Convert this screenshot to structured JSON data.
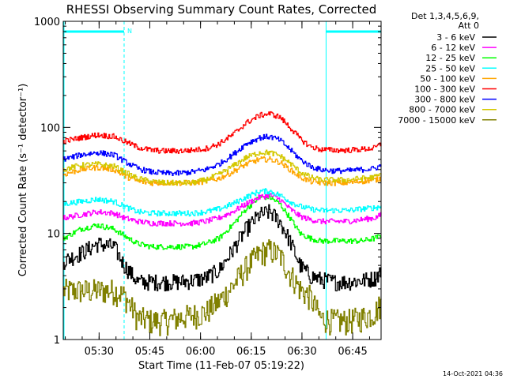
{
  "chart_data": {
    "type": "line",
    "title": "RHESSI Observing Summary Count Rates, Corrected",
    "xlabel": "Start Time (11-Feb-07 05:19:22)",
    "ylabel": "Corrected Count Rate (s⁻¹ detector⁻¹)",
    "yscale": "log",
    "ylim": [
      1,
      1000
    ],
    "xlim_minutes": [
      0,
      94
    ],
    "x_ticks": [
      {
        "m": 10.6,
        "label": "05:30"
      },
      {
        "m": 25.6,
        "label": "05:45"
      },
      {
        "m": 40.6,
        "label": "06:00"
      },
      {
        "m": 55.6,
        "label": "06:15"
      },
      {
        "m": 70.6,
        "label": "06:30"
      },
      {
        "m": 85.6,
        "label": "06:45"
      }
    ],
    "y_ticks": [
      {
        "v": 1,
        "label": "1"
      },
      {
        "v": 10,
        "label": "10"
      },
      {
        "v": 100,
        "label": "100"
      },
      {
        "v": 1000,
        "label": "1000"
      }
    ],
    "legend_header": [
      "Det 1,3,4,5,6,9,",
      "Att 0"
    ],
    "legend_position": "right",
    "night_periods": [
      {
        "start": 0,
        "end": 18
      },
      {
        "start": 77.5,
        "end": 94
      }
    ],
    "saa_marker": "N",
    "series": [
      {
        "name": "3 - 6 keV",
        "color": "#000000",
        "x": [
          0,
          5,
          10,
          15,
          18,
          22,
          26,
          30,
          34,
          38,
          42,
          46,
          50,
          54,
          58,
          61,
          64,
          67,
          70,
          73,
          76,
          80,
          84,
          88,
          92,
          94
        ],
        "values": [
          5.5,
          6.5,
          8,
          7.5,
          5,
          3.5,
          3.5,
          3.5,
          3.5,
          3.6,
          3.8,
          4.5,
          7,
          11,
          15,
          16,
          13,
          8.5,
          5,
          4,
          3.7,
          3.5,
          3.5,
          3.6,
          3.8,
          4.5
        ]
      },
      {
        "name": "6 - 12 keV",
        "color": "#ff00ff",
        "x": [
          0,
          5,
          10,
          15,
          18,
          22,
          26,
          30,
          34,
          38,
          42,
          46,
          50,
          54,
          58,
          61,
          64,
          67,
          70,
          73,
          76,
          80,
          84,
          88,
          92,
          94
        ],
        "values": [
          14,
          15,
          16,
          15.5,
          14,
          13,
          12.5,
          12.5,
          12.5,
          12.5,
          13,
          14,
          16,
          19,
          22,
          23,
          21,
          17,
          14.5,
          13.5,
          13,
          13,
          13,
          13.5,
          14,
          15
        ]
      },
      {
        "name": "12 - 25 keV",
        "color": "#00ff00",
        "x": [
          0,
          5,
          10,
          15,
          18,
          22,
          26,
          30,
          34,
          38,
          42,
          46,
          50,
          54,
          58,
          61,
          64,
          67,
          70,
          73,
          76,
          80,
          84,
          88,
          92,
          94
        ],
        "values": [
          9,
          11,
          12,
          11,
          9.5,
          8,
          7.5,
          7.5,
          7.5,
          7.5,
          8,
          9,
          12,
          17,
          22,
          22,
          19,
          14,
          10,
          9,
          8.5,
          8.5,
          8.5,
          8.5,
          9,
          9.5
        ]
      },
      {
        "name": "25 - 50 keV",
        "color": "#00ffff",
        "x": [
          0,
          5,
          10,
          15,
          18,
          22,
          26,
          30,
          34,
          38,
          42,
          46,
          50,
          54,
          58,
          61,
          64,
          67,
          70,
          73,
          76,
          80,
          84,
          88,
          92,
          94
        ],
        "values": [
          19,
          20,
          21,
          20,
          18,
          16,
          15.5,
          15.5,
          15.5,
          15.5,
          16,
          17,
          19,
          22,
          25,
          25,
          23,
          20,
          18,
          17,
          16.5,
          16.5,
          16.5,
          17,
          17.5,
          18
        ]
      },
      {
        "name": "50 - 100 keV",
        "color": "#ffa500",
        "x": [
          0,
          5,
          10,
          15,
          18,
          22,
          26,
          30,
          34,
          38,
          42,
          46,
          50,
          54,
          58,
          61,
          64,
          67,
          70,
          73,
          76,
          80,
          84,
          88,
          92,
          94
        ],
        "values": [
          36,
          40,
          42,
          40,
          35,
          31,
          30,
          30,
          30,
          30,
          31,
          33,
          38,
          45,
          50,
          50,
          47,
          40,
          34,
          31,
          30,
          30,
          30,
          31,
          32,
          33
        ]
      },
      {
        "name": "100 - 300 keV",
        "color": "#ff0000",
        "x": [
          0,
          5,
          10,
          15,
          18,
          22,
          26,
          30,
          34,
          38,
          42,
          46,
          50,
          54,
          58,
          61,
          64,
          67,
          70,
          73,
          76,
          80,
          84,
          88,
          92,
          94
        ],
        "values": [
          74,
          80,
          85,
          82,
          74,
          65,
          61,
          60,
          60,
          61,
          63,
          70,
          85,
          110,
          130,
          135,
          125,
          100,
          78,
          66,
          62,
          61,
          61,
          62,
          64,
          70
        ]
      },
      {
        "name": "300 - 800 keV",
        "color": "#0000ff",
        "x": [
          0,
          5,
          10,
          15,
          18,
          22,
          26,
          30,
          34,
          38,
          42,
          46,
          50,
          54,
          58,
          61,
          64,
          67,
          70,
          73,
          76,
          80,
          84,
          88,
          92,
          94
        ],
        "values": [
          50,
          55,
          58,
          55,
          48,
          41,
          38,
          37,
          37,
          38,
          40,
          45,
          55,
          70,
          80,
          82,
          76,
          62,
          50,
          43,
          40,
          39,
          39,
          40,
          41,
          44
        ]
      },
      {
        "name": "800 - 7000 keV",
        "color": "#d4c800",
        "x": [
          0,
          5,
          10,
          15,
          18,
          22,
          26,
          30,
          34,
          38,
          42,
          46,
          50,
          54,
          58,
          61,
          64,
          67,
          70,
          73,
          76,
          80,
          84,
          88,
          92,
          94
        ],
        "values": [
          40,
          44,
          45,
          43,
          38,
          33,
          31,
          30,
          30,
          30,
          32,
          36,
          43,
          52,
          58,
          58,
          54,
          46,
          38,
          34,
          32,
          32,
          32,
          33,
          34,
          36
        ]
      },
      {
        "name": "7000 - 15000 keV",
        "color": "#808000",
        "x": [
          0,
          5,
          10,
          15,
          18,
          22,
          26,
          30,
          34,
          38,
          42,
          46,
          50,
          54,
          58,
          61,
          64,
          67,
          70,
          73,
          76,
          80,
          84,
          88,
          92,
          94
        ],
        "values": [
          2.9,
          2.9,
          2.9,
          2.9,
          2.6,
          1.6,
          1.5,
          1.5,
          1.6,
          1.7,
          1.8,
          2.3,
          3.2,
          4.8,
          6.5,
          7,
          6.2,
          4.2,
          3,
          2.5,
          1.6,
          1.5,
          1.5,
          1.6,
          1.8,
          2.2
        ]
      }
    ]
  },
  "footer": {
    "timestamp": "14-Oct-2021 04:36"
  }
}
